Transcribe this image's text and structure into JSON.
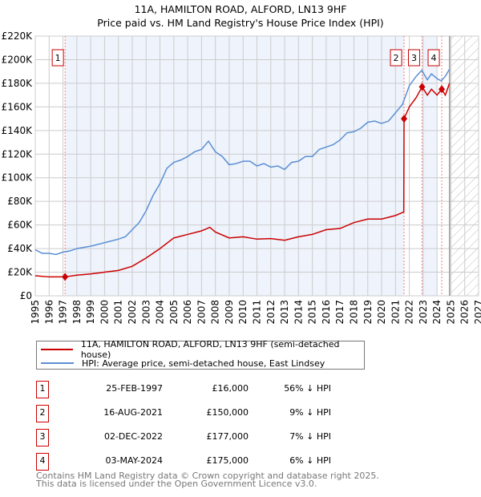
{
  "chart_data": {
    "type": "line",
    "title": "11A, HAMILTON ROAD, ALFORD, LN13 9HF",
    "subtitle": "Price paid vs. HM Land Registry's House Price Index (HPI)",
    "xlim": [
      1995,
      2027
    ],
    "ylim": [
      0,
      220000
    ],
    "x_ticks": [
      "1995",
      "1996",
      "1997",
      "1998",
      "1999",
      "2000",
      "2001",
      "2002",
      "2003",
      "2004",
      "2005",
      "2006",
      "2007",
      "2008",
      "2009",
      "2010",
      "2011",
      "2012",
      "2013",
      "2014",
      "2015",
      "2016",
      "2017",
      "2018",
      "2019",
      "2020",
      "2021",
      "2022",
      "2023",
      "2024",
      "2025",
      "2026",
      "2027"
    ],
    "y_ticks": [
      {
        "v": 0,
        "label": "£0"
      },
      {
        "v": 20000,
        "label": "£20K"
      },
      {
        "v": 40000,
        "label": "£40K"
      },
      {
        "v": 60000,
        "label": "£60K"
      },
      {
        "v": 80000,
        "label": "£80K"
      },
      {
        "v": 100000,
        "label": "£100K"
      },
      {
        "v": 120000,
        "label": "£120K"
      },
      {
        "v": 140000,
        "label": "£140K"
      },
      {
        "v": 160000,
        "label": "£160K"
      },
      {
        "v": 180000,
        "label": "£180K"
      },
      {
        "v": 200000,
        "label": "£200K"
      },
      {
        "v": 220000,
        "label": "£220K"
      }
    ],
    "grid": true,
    "shaded_ranges": [
      [
        1997.15,
        2021.62
      ],
      [
        2022.92,
        2024.0
      ]
    ],
    "forecast_from": 2025,
    "series": [
      {
        "name": "11A, HAMILTON ROAD, ALFORD, LN13 9HF (semi-detached house)",
        "color": "#cc0000",
        "points": [
          [
            1995,
            17000
          ],
          [
            1996,
            16000
          ],
          [
            1997.15,
            16000
          ],
          [
            1998,
            17500
          ],
          [
            1999,
            18500
          ],
          [
            2000,
            20000
          ],
          [
            2001,
            21500
          ],
          [
            2002,
            25000
          ],
          [
            2003,
            32000
          ],
          [
            2004,
            40000
          ],
          [
            2005,
            49000
          ],
          [
            2006,
            52000
          ],
          [
            2007,
            55000
          ],
          [
            2007.6,
            58000
          ],
          [
            2008,
            54000
          ],
          [
            2009,
            49000
          ],
          [
            2010,
            50000
          ],
          [
            2011,
            48000
          ],
          [
            2012,
            48500
          ],
          [
            2013,
            47000
          ],
          [
            2014,
            50000
          ],
          [
            2015,
            52000
          ],
          [
            2016,
            56000
          ],
          [
            2017,
            57000
          ],
          [
            2018,
            62000
          ],
          [
            2019,
            65000
          ],
          [
            2020,
            65000
          ],
          [
            2021,
            68000
          ],
          [
            2021.6,
            71000
          ],
          [
            2021.62,
            150000
          ],
          [
            2022,
            160000
          ],
          [
            2022.5,
            168000
          ],
          [
            2022.92,
            177000
          ],
          [
            2023.3,
            170000
          ],
          [
            2023.6,
            175000
          ],
          [
            2024,
            170000
          ],
          [
            2024.34,
            175000
          ],
          [
            2024.6,
            170000
          ],
          [
            2024.9,
            180000
          ]
        ]
      },
      {
        "name": "HPI: Average price, semi-detached house, East Lindsey",
        "color": "#5b8fd4",
        "points": [
          [
            1995,
            39000
          ],
          [
            1995.5,
            36000
          ],
          [
            1996,
            36000
          ],
          [
            1996.5,
            35000
          ],
          [
            1997,
            37000
          ],
          [
            1997.5,
            38000
          ],
          [
            1998,
            40000
          ],
          [
            1999,
            42000
          ],
          [
            2000,
            45000
          ],
          [
            2001,
            48000
          ],
          [
            2001.5,
            50000
          ],
          [
            2002,
            56000
          ],
          [
            2002.5,
            62000
          ],
          [
            2003,
            72000
          ],
          [
            2003.5,
            85000
          ],
          [
            2004,
            95000
          ],
          [
            2004.5,
            108000
          ],
          [
            2005,
            113000
          ],
          [
            2005.5,
            115000
          ],
          [
            2006,
            118000
          ],
          [
            2006.5,
            122000
          ],
          [
            2007,
            124000
          ],
          [
            2007.5,
            131000
          ],
          [
            2008,
            122000
          ],
          [
            2008.5,
            118000
          ],
          [
            2009,
            111000
          ],
          [
            2009.5,
            112000
          ],
          [
            2010,
            114000
          ],
          [
            2010.5,
            114000
          ],
          [
            2011,
            110000
          ],
          [
            2011.5,
            112000
          ],
          [
            2012,
            109000
          ],
          [
            2012.5,
            110000
          ],
          [
            2013,
            107000
          ],
          [
            2013.5,
            113000
          ],
          [
            2014,
            114000
          ],
          [
            2014.5,
            118000
          ],
          [
            2015,
            118000
          ],
          [
            2015.5,
            124000
          ],
          [
            2016,
            126000
          ],
          [
            2016.5,
            128000
          ],
          [
            2017,
            132000
          ],
          [
            2017.5,
            138000
          ],
          [
            2018,
            139000
          ],
          [
            2018.5,
            142000
          ],
          [
            2019,
            147000
          ],
          [
            2019.5,
            148000
          ],
          [
            2020,
            146000
          ],
          [
            2020.5,
            148000
          ],
          [
            2021,
            155000
          ],
          [
            2021.5,
            162000
          ],
          [
            2022,
            178000
          ],
          [
            2022.5,
            186000
          ],
          [
            2022.9,
            191000
          ],
          [
            2023.3,
            183000
          ],
          [
            2023.6,
            188000
          ],
          [
            2024,
            184000
          ],
          [
            2024.3,
            182000
          ],
          [
            2024.6,
            186000
          ],
          [
            2024.9,
            192000
          ]
        ]
      }
    ],
    "sales": [
      {
        "label": "1",
        "x": 1997.15,
        "value": 16000,
        "date": "25-FEB-1997",
        "price": "£16,000",
        "hpi": "56% ↓ HPI"
      },
      {
        "label": "2",
        "x": 2021.62,
        "value": 150000,
        "date": "16-AUG-2021",
        "price": "£150,000",
        "hpi": "9% ↓ HPI"
      },
      {
        "label": "3",
        "x": 2022.92,
        "value": 177000,
        "date": "02-DEC-2022",
        "price": "£177,000",
        "hpi": "7% ↓ HPI"
      },
      {
        "label": "4",
        "x": 2024.34,
        "value": 175000,
        "date": "03-MAY-2024",
        "price": "£175,000",
        "hpi": "6% ↓ HPI"
      }
    ],
    "legend": [
      "11A, HAMILTON ROAD, ALFORD, LN13 9HF (semi-detached house)",
      "HPI: Average price, semi-detached house, East Lindsey"
    ],
    "legend_placement": "below"
  },
  "footer": {
    "line1": "Contains HM Land Registry data © Crown copyright and database right 2025.",
    "line2": "This data is licensed under the Open Government Licence v3.0."
  }
}
